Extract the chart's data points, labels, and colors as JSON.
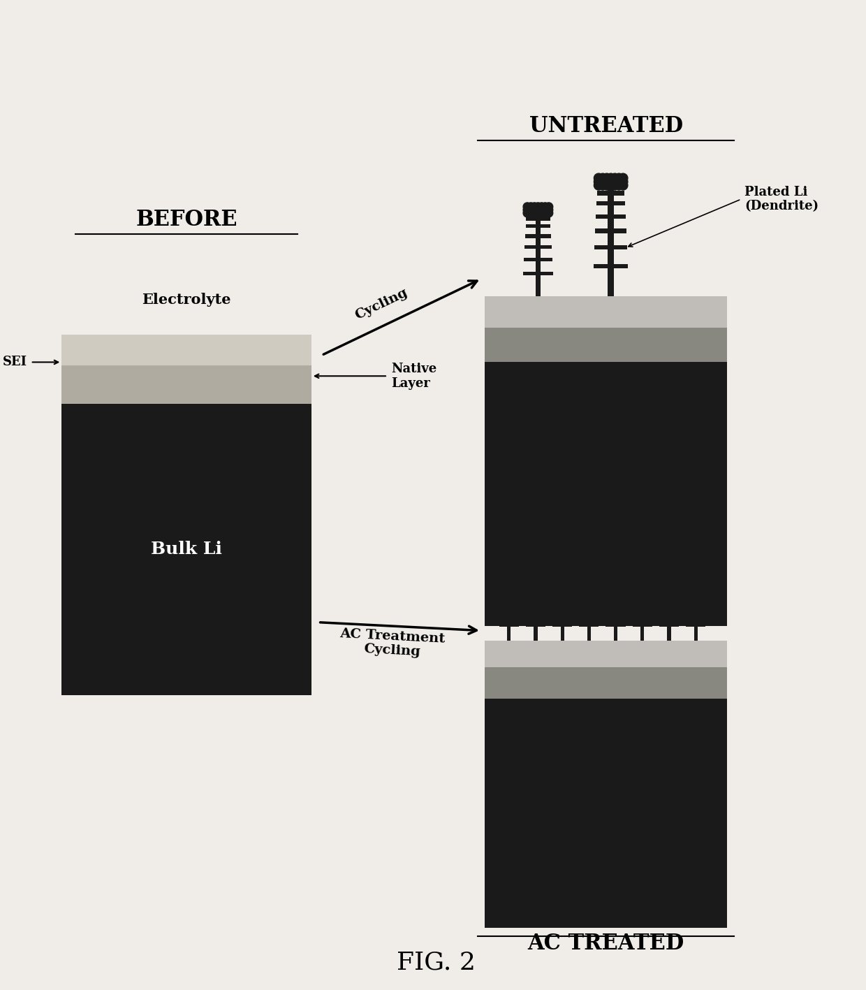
{
  "bg_color": "#f0ede8",
  "title": "FIG. 2",
  "before_label": "BEFORE",
  "untreated_label": "UNTREATED",
  "ac_treated_label": "AC TREATED",
  "electrolyte_label": "Electrolyte",
  "sei_label": "SEI",
  "bulk_li_label": "Bulk Li",
  "native_layer_label": "Native\nLayer",
  "plated_li_label": "Plated Li\n(Dendrite)",
  "cycling_label": "Cycling",
  "ac_treatment_label": "AC Treatment\nCycling",
  "color_bulk_li": "#1a1a1a",
  "color_sei_light": "#d0cbc0",
  "color_sei_mid": "#b0aba0",
  "color_gray_layer": "#888880",
  "color_light_layer": "#c0bdb8"
}
